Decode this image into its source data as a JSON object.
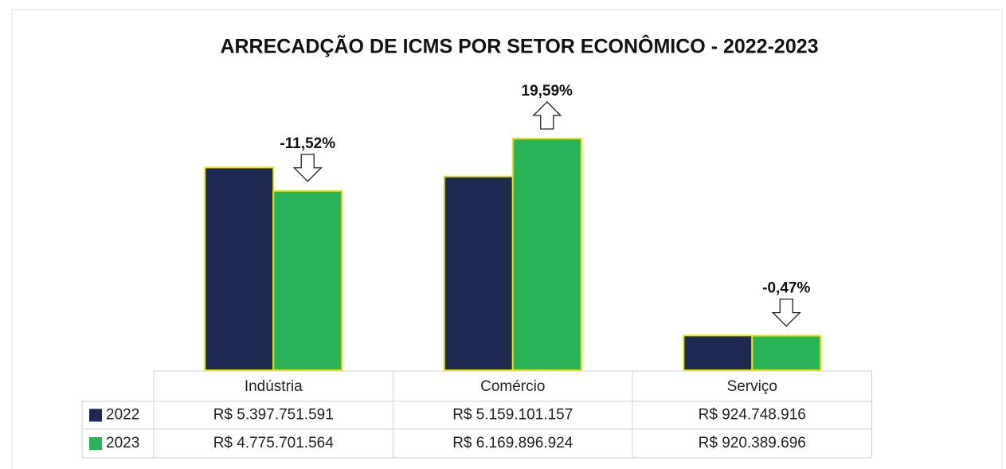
{
  "chart_data": {
    "type": "bar",
    "title": "ARRECADÇÃO DE ICMS POR SETOR ECONÔMICO - 2022-2023",
    "categories": [
      "Indústria",
      "Comércio",
      "Serviço"
    ],
    "series": [
      {
        "name": "2022",
        "color": "#1d2951",
        "values": [
          5397751591,
          5159101157,
          924748916
        ],
        "value_labels": [
          "R$ 5.397.751.591",
          "R$ 5.159.101.157",
          "R$ 924.748.916"
        ]
      },
      {
        "name": "2023",
        "color": "#2ab45a",
        "values": [
          4775701564,
          6169896924,
          920389696
        ],
        "value_labels": [
          "R$ 4.775.701.564",
          "R$ 6.169.896.924",
          "R$ 920.389.696"
        ]
      }
    ],
    "annotations": [
      "-11,52%",
      "19,59%",
      "-0,47%"
    ]
  }
}
